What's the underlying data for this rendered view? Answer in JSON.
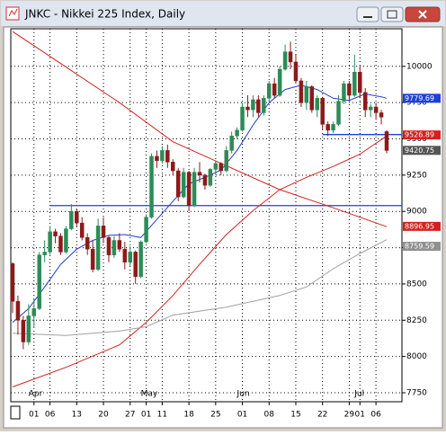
{
  "chart_data": {
    "type": "candlestick",
    "title": "JNKC - Nikkei 225 Index, Daily",
    "categories": [
      null,
      null,
      null,
      null,
      "01",
      null,
      null,
      "06",
      null,
      null,
      null,
      null,
      "13",
      null,
      null,
      null,
      null,
      "20",
      null,
      null,
      null,
      null,
      "27",
      null,
      null,
      "01",
      null,
      null,
      "11",
      null,
      null,
      null,
      null,
      "18",
      null,
      null,
      null,
      null,
      "25",
      null,
      null,
      null,
      null,
      "01",
      null,
      null,
      null,
      null,
      "08",
      null,
      null,
      null,
      null,
      "15",
      null,
      null,
      null,
      null,
      "22",
      null,
      null,
      null,
      null,
      "29",
      null,
      "01",
      null,
      null,
      "06",
      null,
      null
    ],
    "months": [
      {
        "label": "Apr",
        "index": 4
      },
      {
        "label": "May",
        "index": 25
      },
      {
        "label": "Jun",
        "index": 43
      },
      {
        "label": "Jul",
        "index": 65
      }
    ],
    "open": [
      8640,
      8380,
      8250,
      8100,
      8280,
      8330,
      8700,
      8720,
      8860,
      8830,
      8720,
      8880,
      9000,
      8920,
      8820,
      8740,
      8600,
      8900,
      8820,
      8700,
      8800,
      8740,
      8650,
      8720,
      8550,
      8790,
      8960,
      9380,
      9350,
      9420,
      9340,
      9280,
      9100,
      9270,
      9040,
      9270,
      9250,
      9180,
      9290,
      9330,
      9280,
      9420,
      9520,
      9560,
      9720,
      9700,
      9770,
      9680,
      9780,
      9880,
      9800,
      9980,
      10100,
      10030,
      9900,
      9750,
      9860,
      9700,
      9780,
      9600,
      9560,
      9600,
      9760,
      9880,
      9800,
      9960,
      9820,
      9700,
      9720,
      9680,
      9550
    ],
    "high": [
      8650,
      8420,
      8280,
      8360,
      8400,
      8720,
      8800,
      8900,
      8880,
      8850,
      8900,
      9050,
      9020,
      8960,
      8850,
      8800,
      8950,
      8960,
      8830,
      8830,
      8850,
      8790,
      8760,
      8730,
      8800,
      8980,
      9400,
      9420,
      9450,
      9460,
      9360,
      9300,
      9300,
      9280,
      9300,
      9340,
      9260,
      9300,
      9350,
      9340,
      9450,
      9550,
      9580,
      9750,
      9800,
      9800,
      9800,
      9800,
      9900,
      9920,
      10000,
      10150,
      10170,
      10080,
      9920,
      9900,
      9870,
      9800,
      9790,
      9620,
      9620,
      9800,
      9900,
      9900,
      10080,
      10000,
      9850,
      9740,
      9750,
      9700,
      9560
    ],
    "low": [
      8300,
      8150,
      8050,
      8080,
      8200,
      8320,
      8650,
      8700,
      8780,
      8700,
      8710,
      8870,
      8890,
      8800,
      8700,
      8580,
      8590,
      8780,
      8650,
      8680,
      8720,
      8600,
      8620,
      8500,
      8540,
      8780,
      8950,
      9300,
      9330,
      9300,
      9250,
      9070,
      9090,
      9000,
      9030,
      9200,
      9150,
      9170,
      9250,
      9250,
      9270,
      9400,
      9500,
      9550,
      9650,
      9650,
      9650,
      9660,
      9760,
      9780,
      9790,
      9970,
      9980,
      9880,
      9720,
      9700,
      9680,
      9650,
      9560,
      9520,
      9540,
      9590,
      9740,
      9760,
      9790,
      9780,
      9650,
      9650,
      9640,
      9600,
      9400
    ],
    "close": [
      8380,
      8250,
      8100,
      8280,
      8330,
      8700,
      8720,
      8860,
      8830,
      8720,
      8880,
      9000,
      8920,
      8820,
      8740,
      8600,
      8900,
      8820,
      8700,
      8800,
      8740,
      8650,
      8720,
      8550,
      8790,
      8960,
      9380,
      9350,
      9420,
      9340,
      9280,
      9100,
      9270,
      9040,
      9270,
      9250,
      9180,
      9290,
      9330,
      9280,
      9420,
      9520,
      9560,
      9720,
      9700,
      9770,
      9680,
      9780,
      9880,
      9800,
      9980,
      10100,
      10030,
      9900,
      9750,
      9860,
      9700,
      9780,
      9600,
      9560,
      9600,
      9760,
      9880,
      9800,
      9960,
      9820,
      9700,
      9720,
      9680,
      9650,
      9420
    ],
    "up_color": "#2e8b57",
    "down_color": "#8b1a1a",
    "ylim": [
      7688,
      10259
    ],
    "yticks": [
      7750,
      8000,
      8250,
      8500,
      8750,
      9000,
      9250,
      9500,
      9750,
      10000
    ],
    "grid": true,
    "lines": [
      {
        "color": "#d42020",
        "x": [
          0,
          10,
          20,
          30,
          40,
          50,
          60,
          70
        ],
        "values": [
          10240,
          9995,
          9750,
          9480,
          9315,
          9150,
          9025,
          8895
        ]
      },
      {
        "color": "#d42020",
        "x": [
          0,
          10,
          20,
          25,
          30,
          35,
          40,
          45,
          50,
          55,
          60,
          65,
          70
        ],
        "values": [
          7790,
          7925,
          8080,
          8235,
          8420,
          8635,
          8840,
          9005,
          9150,
          9235,
          9310,
          9395,
          9520
        ]
      },
      {
        "color": "#a0a0a0",
        "x": [
          0,
          10,
          20,
          25,
          30,
          40,
          50,
          55,
          60,
          65,
          70
        ],
        "values": [
          8160,
          8145,
          8175,
          8205,
          8285,
          8340,
          8420,
          8480,
          8605,
          8710,
          8805
        ]
      },
      {
        "color": "#1f3fd8",
        "x": [
          0,
          3,
          6,
          9,
          12,
          15,
          18,
          21,
          24,
          27,
          30,
          33,
          36,
          39,
          42,
          45,
          48,
          51,
          54,
          57,
          60,
          63,
          66,
          69,
          70
        ],
        "values": [
          8235,
          8330,
          8480,
          8635,
          8740,
          8800,
          8835,
          8840,
          8820,
          8945,
          9070,
          9190,
          9235,
          9285,
          9420,
          9595,
          9750,
          9840,
          9870,
          9840,
          9780,
          9765,
          9810,
          9790,
          9780
        ]
      }
    ],
    "hlines": [
      {
        "value": 9040,
        "from": 7,
        "color": "#1f3fd8"
      },
      {
        "value": 9530,
        "from": 58,
        "color": "#1f3fd8"
      }
    ],
    "price_labels": [
      {
        "value": 9779.69,
        "color": "#1f3fd8"
      },
      {
        "value": 9526.89,
        "color": "#d42020"
      },
      {
        "value": 9420.75,
        "color": "#555555"
      },
      {
        "value": 8896.95,
        "color": "#d42020"
      },
      {
        "value": 8759.59,
        "color": "#909090"
      }
    ]
  }
}
